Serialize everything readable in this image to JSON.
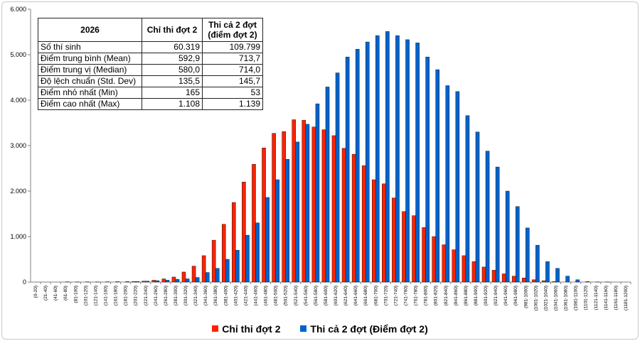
{
  "table": {
    "headers": [
      "2026",
      "Chỉ thi đợt 2",
      "Thi cả 2 đợt\n(điểm đợt 2)"
    ],
    "rows": [
      [
        "Số thí sinh",
        "60.319",
        "109.799"
      ],
      [
        "Điểm trung bình (Mean)",
        "592,9",
        "713,7"
      ],
      [
        "Điểm trung vị (Median)",
        "580,0",
        "714,0"
      ],
      [
        "Độ lệch chuẩn (Std. Dev)",
        "135,5",
        "145,7"
      ],
      [
        "Điểm nhỏ nhất (Min)",
        "165",
        "53"
      ],
      [
        "Điểm cao nhất (Max)",
        "1.108",
        "1.139"
      ]
    ]
  },
  "chart_data": {
    "type": "bar",
    "ylim": [
      0,
      6000
    ],
    "y_ticks": [
      "0",
      "1.000",
      "2.000",
      "3.000",
      "4.000",
      "5.000",
      "6.000"
    ],
    "y_tick_values": [
      0,
      1000,
      2000,
      3000,
      4000,
      5000,
      6000
    ],
    "grid": false,
    "legend_position": "bottom",
    "categories": [
      "(0-20)",
      "(21-40)",
      "(41-60)",
      "(61-80)",
      "(81-100)",
      "(101-120)",
      "(121-140)",
      "(141-160)",
      "(161-180)",
      "(181-200)",
      "(201-220)",
      "(221-240)",
      "(241-260)",
      "(261-280)",
      "(281-300)",
      "(301-320)",
      "(321-340)",
      "(341-360)",
      "(361-380)",
      "(381-400)",
      "(401-420)",
      "(421-440)",
      "(441-460)",
      "(461-480)",
      "(481-500)",
      "(501-520)",
      "(521-540)",
      "(541-560)",
      "(561-580)",
      "(581-600)",
      "(601-620)",
      "(621-640)",
      "(641-660)",
      "(661-680)",
      "(681-700)",
      "(701-720)",
      "(721-740)",
      "(741-760)",
      "(761-780)",
      "(781-800)",
      "(801-820)",
      "(821-840)",
      "(841-860)",
      "(861-880)",
      "(881-900)",
      "(901-920)",
      "(921-940)",
      "(941-960)",
      "(961-980)",
      "(981-1000)",
      "(1001-1020)",
      "(1021-1040)",
      "(1041-1060)",
      "(1061-1080)",
      "(1081-1100)",
      "(1101-1120)",
      "(1121-1140)",
      "(1141-1160)",
      "(1161-1180)",
      "(1181-1200)"
    ],
    "series": [
      {
        "name": "Chỉ thi đợt 2",
        "color": "#ff2200",
        "values": [
          0,
          0,
          0,
          0,
          0,
          0,
          0,
          0,
          0,
          0,
          10,
          20,
          40,
          70,
          110,
          220,
          350,
          580,
          920,
          1270,
          1750,
          2200,
          2590,
          2950,
          3270,
          3310,
          3570,
          3560,
          3410,
          3350,
          3220,
          2940,
          2810,
          2560,
          2250,
          2160,
          1850,
          1550,
          1460,
          1200,
          1000,
          820,
          710,
          580,
          450,
          330,
          260,
          180,
          130,
          90,
          50,
          30,
          10,
          0,
          0,
          0,
          0,
          0,
          0,
          0
        ]
      },
      {
        "name": "Thi cả 2 đợt (Điểm đợt 2)",
        "color": "#0063cc",
        "values": [
          0,
          0,
          0,
          5,
          3,
          5,
          3,
          5,
          8,
          10,
          12,
          20,
          30,
          40,
          60,
          70,
          100,
          210,
          300,
          500,
          700,
          1030,
          1300,
          1860,
          2250,
          2700,
          3080,
          3470,
          3920,
          4290,
          4600,
          4950,
          5120,
          5280,
          5420,
          5510,
          5420,
          5330,
          5260,
          4950,
          4670,
          4320,
          4190,
          3660,
          3300,
          2880,
          2530,
          2000,
          1660,
          1190,
          810,
          450,
          300,
          130,
          50,
          10,
          3,
          2,
          0,
          0
        ]
      }
    ]
  }
}
